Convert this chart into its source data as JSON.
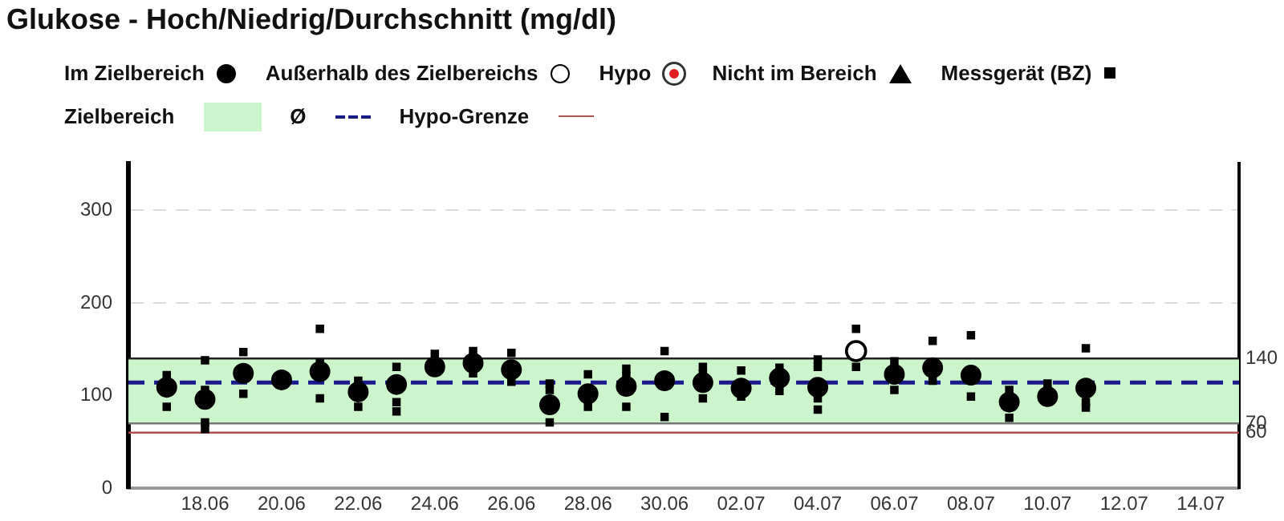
{
  "chart_data": {
    "type": "scatter",
    "title": "Glukose - Hoch/Niedrig/Durchschnitt (mg/dl)",
    "legend": "top",
    "xlim": [
      "--06-16",
      "--07-15"
    ],
    "xticks": [
      {
        "value": "--06-18",
        "label": "18.06"
      },
      {
        "value": "--06-20",
        "label": "20.06"
      },
      {
        "value": "--06-22",
        "label": "22.06"
      },
      {
        "value": "--06-24",
        "label": "24.06"
      },
      {
        "value": "--06-26",
        "label": "26.06"
      },
      {
        "value": "--06-28",
        "label": "28.06"
      },
      {
        "value": "--06-30",
        "label": "30.06"
      },
      {
        "value": "--07-02",
        "label": "02.07"
      },
      {
        "value": "--07-04",
        "label": "04.07"
      },
      {
        "value": "--07-06",
        "label": "06.07"
      },
      {
        "value": "--07-08",
        "label": "08.07"
      },
      {
        "value": "--07-10",
        "label": "10.07"
      },
      {
        "value": "--07-12",
        "label": "12.07"
      },
      {
        "value": "--07-14",
        "label": "14.07"
      }
    ],
    "ylim": [
      0,
      350
    ],
    "yticks": [
      0,
      100,
      200,
      300
    ],
    "y2lim": [
      0,
      350
    ],
    "y2ticks": [
      60,
      70,
      140
    ],
    "grid": "y",
    "series": [
      {
        "name": "Im Zielbereich",
        "color": "#000000",
        "marker": "circle",
        "x": [
          "--06-17",
          "--06-18",
          "--06-19",
          "--06-20",
          "--06-21",
          "--06-22",
          "--06-23",
          "--06-24",
          "--06-25",
          "--06-26",
          "--06-27",
          "--06-28",
          "--06-29",
          "--06-30",
          "--07-01",
          "--07-02",
          "--07-03",
          "--07-04",
          "--07-06",
          "--07-07",
          "--07-08",
          "--07-09",
          "--07-10",
          "--07-11"
        ],
        "values": [
          109,
          96,
          124,
          117,
          126,
          104,
          112,
          131,
          135,
          128,
          90,
          102,
          110,
          116,
          114,
          108,
          119,
          109,
          123,
          130,
          122,
          93,
          99,
          108
        ]
      },
      {
        "name": "Außerhalb des Zielbereichs",
        "color": "#000000",
        "marker": "circle-open",
        "x": [
          "--07-05"
        ],
        "values": [
          148
        ]
      },
      {
        "name": "Hypo",
        "color": "#e02020",
        "marker": "circle-dot"
      },
      {
        "name": "Nicht im Bereich",
        "color": "#000000",
        "marker": "triangle"
      },
      {
        "name": "Messgerät (BZ)",
        "color": "#000000",
        "marker": "square",
        "x": [
          "--06-17",
          "--06-17",
          "--06-18",
          "--06-18",
          "--06-18",
          "--06-18",
          "--06-19",
          "--06-19",
          "--06-21",
          "--06-21",
          "--06-21",
          "--06-22",
          "--06-22",
          "--06-23",
          "--06-23",
          "--06-23",
          "--06-24",
          "--06-25",
          "--06-25",
          "--06-26",
          "--06-26",
          "--06-27",
          "--06-27",
          "--06-27",
          "--06-28",
          "--06-28",
          "--06-29",
          "--06-29",
          "--06-29",
          "--06-30",
          "--06-30",
          "--07-01",
          "--07-01",
          "--07-01",
          "--07-02",
          "--07-02",
          "--07-03",
          "--07-03",
          "--07-04",
          "--07-04",
          "--07-04",
          "--07-04",
          "--07-05",
          "--07-05",
          "--07-06",
          "--07-06",
          "--07-07",
          "--07-07",
          "--07-08",
          "--07-08",
          "--07-09",
          "--07-09",
          "--07-10",
          "--07-11",
          "--07-11",
          "--07-11"
        ],
        "values": [
          122,
          88,
          138,
          106,
          71,
          64,
          147,
          102,
          172,
          135,
          97,
          116,
          88,
          131,
          93,
          83,
          145,
          148,
          124,
          146,
          115,
          113,
          106,
          71,
          123,
          88,
          129,
          121,
          88,
          148,
          77,
          131,
          124,
          97,
          127,
          99,
          130,
          105,
          139,
          131,
          97,
          85,
          172,
          131,
          137,
          106,
          159,
          116,
          165,
          99,
          106,
          76,
          113,
          151,
          93,
          87
        ]
      }
    ],
    "bands": [
      {
        "axis": "y",
        "from": 70,
        "to": 140,
        "label": "Zielbereich",
        "color": "#ccf5cc"
      }
    ],
    "ref_lines": [
      {
        "axis": "y",
        "value": 140,
        "color": "#222222",
        "line_style": "solid"
      },
      {
        "axis": "y",
        "value": 70,
        "color": "#777777",
        "line_style": "solid"
      },
      {
        "axis": "y",
        "value": 114,
        "label": "Ø",
        "color": "#1a1a8c",
        "line_style": "dashed"
      },
      {
        "axis": "y",
        "value": 60,
        "label": "Hypo-Grenze",
        "color": "#b05050",
        "line_style": "solid"
      }
    ]
  }
}
